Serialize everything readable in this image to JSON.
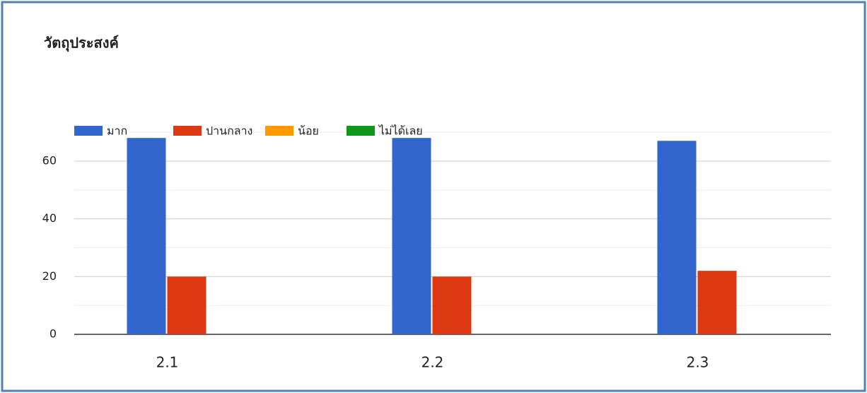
{
  "chart_data": {
    "type": "bar",
    "title": "วัตถุประสงค์",
    "categories": [
      "2.1",
      "2.2",
      "2.3"
    ],
    "series": [
      {
        "name": "มาก",
        "color": "#3366cc",
        "values": [
          68,
          68,
          67
        ]
      },
      {
        "name": "ปานกลาง",
        "color": "#dc3912",
        "values": [
          20,
          20,
          22
        ]
      },
      {
        "name": "น้อย",
        "color": "#ff9900",
        "values": [
          0,
          0,
          0
        ]
      },
      {
        "name": "ไม่ได้เลย",
        "color": "#109618",
        "values": [
          0,
          0,
          0
        ]
      }
    ],
    "ylim": [
      0,
      70
    ],
    "yticks": [
      0,
      20,
      40,
      60
    ],
    "minor_yticks": [
      10,
      30,
      50,
      70
    ],
    "grid": true,
    "legend": "top"
  }
}
